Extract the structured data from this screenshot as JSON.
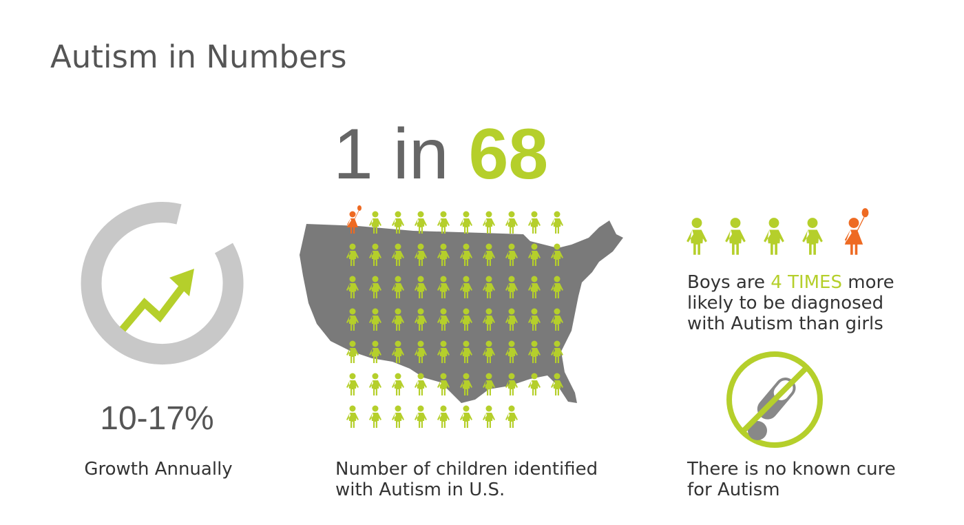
{
  "title": "Autism in Numbers",
  "growth": {
    "value": "10-17%",
    "label": "Growth Annually"
  },
  "prevalence": {
    "prefix": "1 in",
    "total": 68,
    "caption": [
      "Number of children identified",
      "with Autism in U.S."
    ]
  },
  "gender": {
    "lead": "Boys are",
    "highlight": "4 TIMES",
    "rest": "more",
    "lines": [
      "likely to be diagnosed",
      "with Autism than girls"
    ]
  },
  "cure": {
    "lines": [
      "There is no known cure",
      "for Autism"
    ]
  }
}
